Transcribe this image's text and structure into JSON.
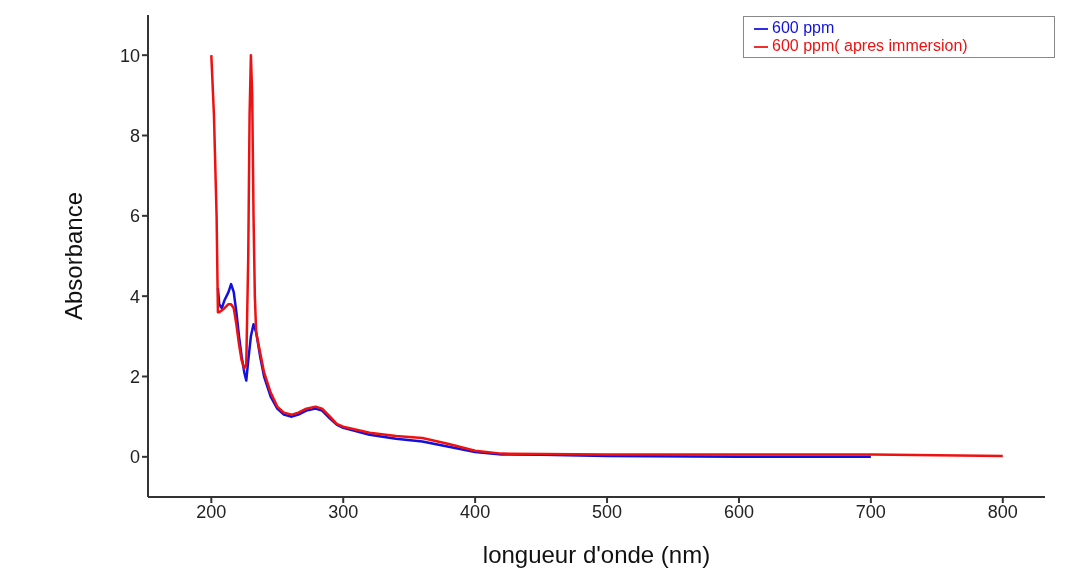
{
  "chart_data": {
    "type": "line",
    "xlabel": "longueur d'onde (nm)",
    "ylabel": "Absorbance",
    "xlim": [
      152,
      832
    ],
    "xticks": [
      200,
      300,
      400,
      500,
      600,
      700,
      800
    ],
    "ylim": [
      -1,
      11
    ],
    "yticks": [
      0,
      2,
      4,
      6,
      8,
      10
    ],
    "legend": "top right",
    "grid": false,
    "marker": "none",
    "line_style": "solid",
    "series": [
      {
        "name": "600 ppm",
        "color": "#1010e0",
        "x": [
          205,
          206,
          208,
          210,
          213,
          215,
          217,
          219,
          221,
          223,
          225,
          226.5,
          228,
          230,
          232,
          234,
          237,
          240,
          245,
          250,
          255,
          261,
          266,
          272,
          279,
          284,
          290,
          295,
          300,
          320,
          340,
          360,
          380,
          400,
          420,
          450,
          500,
          600,
          700
        ],
        "values": [
          4.2,
          3.8,
          3.7,
          3.9,
          4.1,
          4.3,
          4.1,
          3.6,
          3.0,
          2.5,
          2.1,
          1.9,
          2.4,
          3.0,
          3.3,
          3.1,
          2.5,
          2.0,
          1.5,
          1.2,
          1.05,
          1.0,
          1.05,
          1.15,
          1.2,
          1.15,
          0.95,
          0.8,
          0.72,
          0.55,
          0.45,
          0.38,
          0.25,
          0.12,
          0.06,
          0.05,
          0.02,
          0.0,
          0.0
        ]
      },
      {
        "name": "600 ppm( apres immersion)",
        "color": "#ee1111",
        "x": [
          200,
          202,
          204,
          205,
          206,
          208,
          210,
          213,
          215,
          217,
          219,
          221,
          223,
          225,
          226.5,
          228,
          229,
          230,
          231,
          232,
          233,
          234,
          237,
          240,
          245,
          250,
          255,
          261,
          266,
          272,
          279,
          284,
          290,
          295,
          300,
          320,
          340,
          360,
          380,
          400,
          420,
          450,
          500,
          600,
          700,
          800
        ],
        "values": [
          10,
          8.5,
          6,
          3.6,
          3.6,
          3.65,
          3.7,
          3.8,
          3.8,
          3.7,
          3.3,
          2.8,
          2.4,
          2.2,
          2.3,
          5,
          8.5,
          10,
          9,
          6,
          4,
          3.1,
          2.6,
          2.1,
          1.6,
          1.25,
          1.1,
          1.05,
          1.1,
          1.2,
          1.25,
          1.2,
          1.0,
          0.82,
          0.75,
          0.6,
          0.52,
          0.47,
          0.32,
          0.15,
          0.08,
          0.07,
          0.06,
          0.06,
          0.06,
          0.02
        ]
      }
    ]
  }
}
